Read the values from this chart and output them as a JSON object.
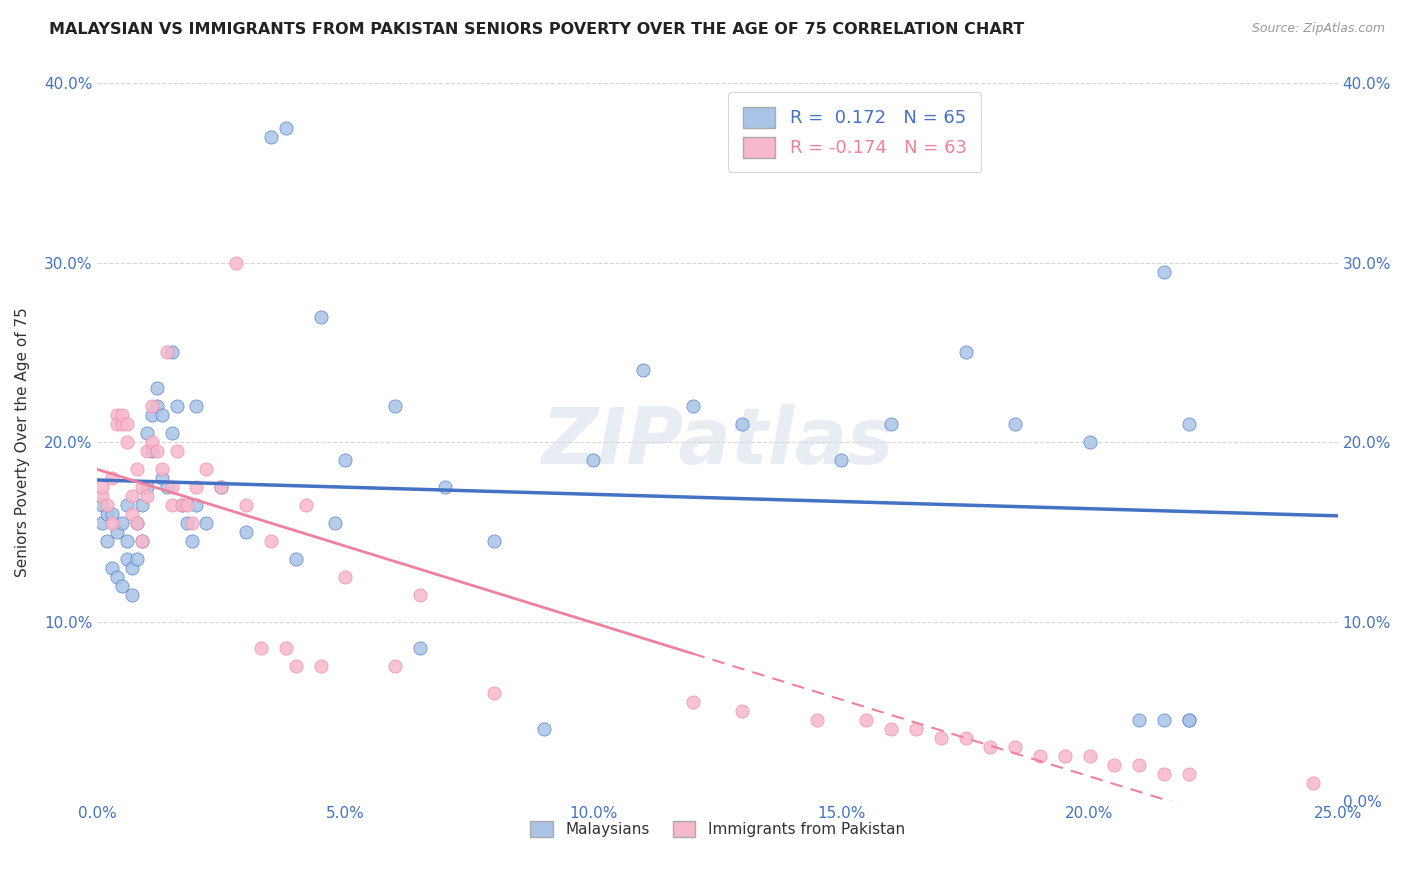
{
  "title": "MALAYSIAN VS IMMIGRANTS FROM PAKISTAN SENIORS POVERTY OVER THE AGE OF 75 CORRELATION CHART",
  "source": "Source: ZipAtlas.com",
  "ylabel": "Seniors Poverty Over the Age of 75",
  "xlim": [
    0.0,
    0.25
  ],
  "ylim": [
    0.0,
    0.4
  ],
  "legend_label1": "Malaysians",
  "legend_label2": "Immigrants from Pakistan",
  "R1": 0.172,
  "N1": 65,
  "R2": -0.174,
  "N2": 63,
  "color_blue": "#aac4e8",
  "color_pink": "#f7b8cb",
  "line_blue": "#4472c4",
  "line_pink": "#f080a0",
  "background": "#ffffff",
  "malaysians_x": [
    0.001,
    0.001,
    0.002,
    0.002,
    0.003,
    0.003,
    0.004,
    0.004,
    0.005,
    0.005,
    0.006,
    0.006,
    0.006,
    0.007,
    0.007,
    0.008,
    0.008,
    0.009,
    0.009,
    0.01,
    0.01,
    0.011,
    0.011,
    0.012,
    0.012,
    0.013,
    0.013,
    0.014,
    0.015,
    0.015,
    0.016,
    0.017,
    0.018,
    0.019,
    0.02,
    0.02,
    0.022,
    0.025,
    0.03,
    0.035,
    0.038,
    0.04,
    0.045,
    0.05,
    0.06,
    0.07,
    0.09,
    0.1,
    0.11,
    0.12,
    0.13,
    0.15,
    0.16,
    0.175,
    0.185,
    0.2,
    0.21,
    0.215,
    0.215,
    0.22,
    0.22,
    0.22,
    0.065,
    0.08,
    0.048
  ],
  "malaysians_y": [
    0.155,
    0.165,
    0.16,
    0.145,
    0.16,
    0.13,
    0.15,
    0.125,
    0.155,
    0.12,
    0.135,
    0.145,
    0.165,
    0.13,
    0.115,
    0.135,
    0.155,
    0.145,
    0.165,
    0.175,
    0.205,
    0.215,
    0.195,
    0.22,
    0.23,
    0.215,
    0.18,
    0.175,
    0.205,
    0.25,
    0.22,
    0.165,
    0.155,
    0.145,
    0.165,
    0.22,
    0.155,
    0.175,
    0.15,
    0.37,
    0.375,
    0.135,
    0.27,
    0.19,
    0.22,
    0.175,
    0.04,
    0.19,
    0.24,
    0.22,
    0.21,
    0.19,
    0.21,
    0.25,
    0.21,
    0.2,
    0.045,
    0.045,
    0.295,
    0.045,
    0.045,
    0.21,
    0.085,
    0.145,
    0.155
  ],
  "pakistan_x": [
    0.001,
    0.001,
    0.002,
    0.003,
    0.003,
    0.004,
    0.004,
    0.005,
    0.005,
    0.006,
    0.006,
    0.007,
    0.007,
    0.008,
    0.008,
    0.009,
    0.009,
    0.01,
    0.01,
    0.011,
    0.011,
    0.012,
    0.013,
    0.014,
    0.015,
    0.015,
    0.016,
    0.017,
    0.018,
    0.019,
    0.02,
    0.022,
    0.025,
    0.028,
    0.03,
    0.033,
    0.035,
    0.038,
    0.04,
    0.042,
    0.045,
    0.05,
    0.06,
    0.065,
    0.08,
    0.12,
    0.13,
    0.145,
    0.155,
    0.16,
    0.165,
    0.17,
    0.175,
    0.18,
    0.185,
    0.19,
    0.195,
    0.2,
    0.205,
    0.21,
    0.215,
    0.22,
    0.245
  ],
  "pakistan_y": [
    0.17,
    0.175,
    0.165,
    0.18,
    0.155,
    0.215,
    0.21,
    0.21,
    0.215,
    0.21,
    0.2,
    0.16,
    0.17,
    0.155,
    0.185,
    0.145,
    0.175,
    0.17,
    0.195,
    0.22,
    0.2,
    0.195,
    0.185,
    0.25,
    0.165,
    0.175,
    0.195,
    0.165,
    0.165,
    0.155,
    0.175,
    0.185,
    0.175,
    0.3,
    0.165,
    0.085,
    0.145,
    0.085,
    0.075,
    0.165,
    0.075,
    0.125,
    0.075,
    0.115,
    0.06,
    0.055,
    0.05,
    0.045,
    0.045,
    0.04,
    0.04,
    0.035,
    0.035,
    0.03,
    0.03,
    0.025,
    0.025,
    0.025,
    0.02,
    0.02,
    0.015,
    0.015,
    0.01
  ]
}
